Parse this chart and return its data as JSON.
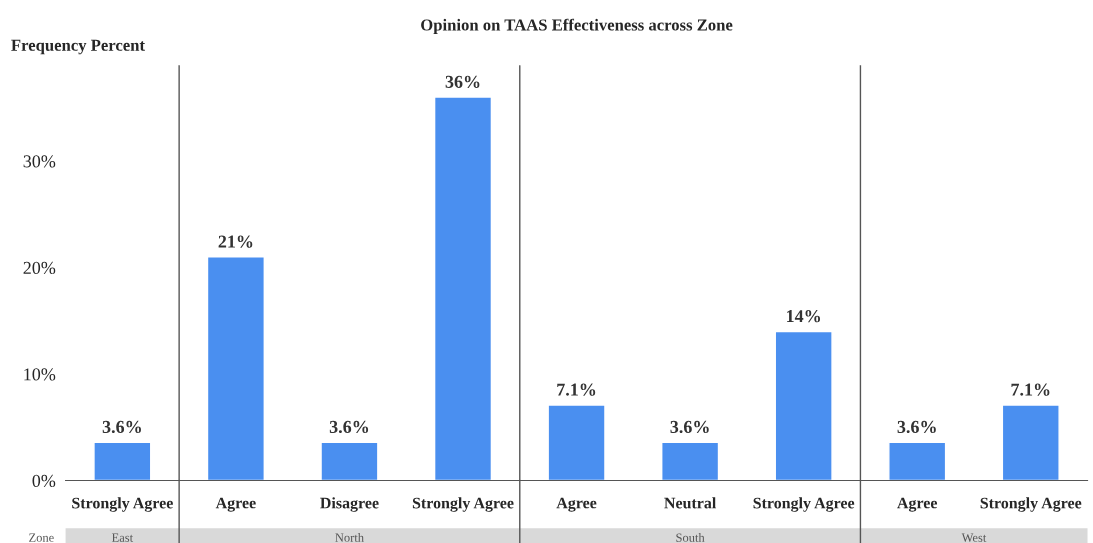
{
  "chart_data": {
    "type": "bar",
    "title": "Opinion on TAAS Effectiveness across Zone",
    "ylabel": "Frequency Percent",
    "categories": [
      "Strongly Agree",
      "Agree",
      "Disagree",
      "Strongly Agree",
      "Agree",
      "Neutral",
      "Strongly Agree",
      "Agree",
      "Strongly Agree"
    ],
    "values": [
      3.6,
      21,
      3.6,
      36,
      7.1,
      3.6,
      14,
      3.6,
      7.1
    ],
    "value_labels": [
      "3.6%",
      "21%",
      "3.6%",
      "36%",
      "7.1%",
      "3.6%",
      "14%",
      "3.6%",
      "7.1%"
    ],
    "color": "#4a8ff0",
    "ylim": [
      0,
      39
    ],
    "yticks": [
      {
        "value": 0,
        "label": "0%"
      },
      {
        "value": 10,
        "label": "10%"
      },
      {
        "value": 20,
        "label": "20%"
      },
      {
        "value": 30,
        "label": "30%"
      }
    ],
    "annotations": [
      "Zone",
      "East",
      "North",
      "South",
      "West"
    ],
    "grid": false
  }
}
